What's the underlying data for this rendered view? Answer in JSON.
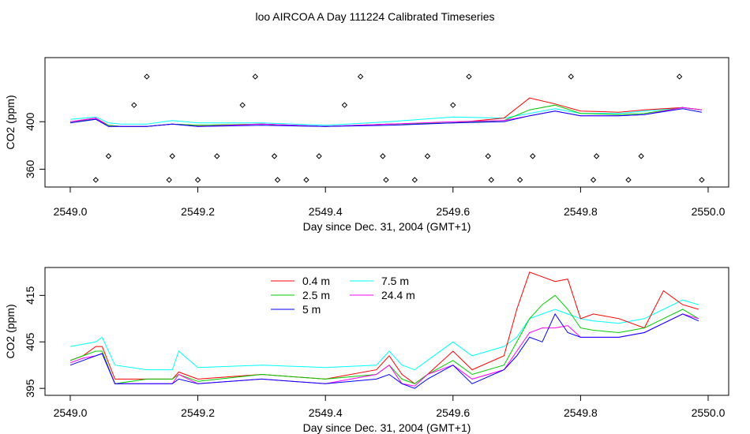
{
  "title": "loo AIRCOA A  Day 111224  Calibrated Timeseries",
  "colors": {
    "0.4 m": "#ff0000",
    "2.5 m": "#00cc00",
    "5 m": "#0000ff",
    "7.5 m": "#00ffff",
    "24.4 m": "#ff00ff",
    "marker": "#000000"
  },
  "chart_data": [
    {
      "type": "line",
      "xlabel": "Day since Dec. 31, 2004 (GMT+1)",
      "ylabel": "CO2 (ppm)",
      "xlim": [
        2549.0,
        2550.0
      ],
      "ylim": [
        345,
        454
      ],
      "xticks": [
        "2549.0",
        "2549.2",
        "2549.4",
        "2549.6",
        "2549.8",
        "2550.0"
      ],
      "yticks": [
        "360",
        "400"
      ],
      "x": [
        2549.0,
        2549.04,
        2549.06,
        2549.08,
        2549.12,
        2549.16,
        2549.2,
        2549.3,
        2549.4,
        2549.5,
        2549.6,
        2549.68,
        2549.72,
        2549.76,
        2549.8,
        2549.86,
        2549.9,
        2549.96,
        2549.99
      ],
      "series": [
        {
          "name": "0.4 m",
          "values": [
            400,
            403,
            397,
            396,
            396,
            398,
            397,
            398,
            396,
            398,
            399,
            403,
            420,
            415,
            409,
            408,
            410,
            412,
            410
          ]
        },
        {
          "name": "2.5 m",
          "values": [
            400,
            402,
            397,
            396,
            396,
            398,
            397,
            398,
            396,
            398,
            399,
            401,
            410,
            414,
            407,
            406,
            407,
            412,
            410
          ]
        },
        {
          "name": "5 m",
          "values": [
            399,
            402,
            396,
            396,
            396,
            398,
            396,
            397,
            396,
            397,
            399,
            400,
            405,
            409,
            405,
            405,
            406,
            411,
            408
          ]
        },
        {
          "name": "7.5 m",
          "values": [
            402,
            404,
            399,
            398,
            398,
            401,
            399,
            399,
            397,
            400,
            404,
            403,
            407,
            411,
            407,
            407,
            409,
            412,
            410
          ]
        },
        {
          "name": "24.4 m",
          "values": [
            400,
            403,
            396,
            396,
            396,
            398,
            396,
            398,
            396,
            398,
            400,
            401,
            405,
            409,
            405,
            405,
            406,
            412,
            410
          ]
        }
      ],
      "markers_x": [
        2549.04,
        2549.06,
        2549.1,
        2549.12,
        2549.155,
        2549.16,
        2549.2,
        2549.23,
        2549.27,
        2549.29,
        2549.32,
        2549.325,
        2549.37,
        2549.39,
        2549.43,
        2549.455,
        2549.49,
        2549.495,
        2549.54,
        2549.56,
        2549.6,
        2549.625,
        2549.655,
        2549.66,
        2549.705,
        2549.725,
        2549.785,
        2549.82,
        2549.825,
        2549.875,
        2549.895,
        2549.955,
        2549.99
      ],
      "markers_y": [
        351,
        371,
        414,
        438,
        351,
        371,
        351,
        371,
        414,
        438,
        371,
        351,
        351,
        371,
        414,
        438,
        371,
        351,
        351,
        371,
        414,
        438,
        371,
        351,
        351,
        371,
        438,
        351,
        371,
        351,
        371,
        438,
        351
      ]
    },
    {
      "type": "line",
      "xlabel": "Day since Dec. 31, 2004 (GMT+1)",
      "ylabel": "CO2 (ppm)",
      "xlim": [
        2549.0,
        2550.0
      ],
      "ylim": [
        393.5,
        421
      ],
      "xticks": [
        "2549.0",
        "2549.2",
        "2549.4",
        "2549.6",
        "2549.8",
        "2550.0"
      ],
      "yticks": [
        "395",
        "405",
        "415"
      ],
      "legend": "top-center",
      "x": [
        2549.0,
        2549.02,
        2549.04,
        2549.05,
        2549.07,
        2549.12,
        2549.16,
        2549.17,
        2549.2,
        2549.3,
        2549.4,
        2549.48,
        2549.5,
        2549.52,
        2549.54,
        2549.56,
        2549.6,
        2549.63,
        2549.68,
        2549.7,
        2549.72,
        2549.74,
        2549.76,
        2549.78,
        2549.8,
        2549.82,
        2549.86,
        2549.9,
        2549.93,
        2549.96,
        2549.985
      ],
      "series": [
        {
          "name": "0.4 m",
          "values": [
            401,
            402,
            404,
            404,
            397,
            397,
            397,
            398.5,
            397,
            398,
            397,
            399,
            402,
            398,
            396,
            398,
            403,
            399,
            402,
            412,
            420,
            419,
            418,
            418.5,
            410,
            411,
            410,
            408,
            416,
            413,
            412
          ]
        },
        {
          "name": "2.5 m",
          "values": [
            401,
            402,
            403,
            403,
            396,
            397,
            397,
            398,
            396.5,
            398,
            397,
            398,
            400,
            397,
            396,
            398,
            401,
            398,
            400,
            405,
            410,
            413,
            415,
            412,
            408,
            407.5,
            407,
            408,
            410,
            412,
            410
          ]
        },
        {
          "name": "5 m",
          "values": [
            400,
            401,
            402,
            402.5,
            396,
            396,
            396,
            397,
            396,
            397,
            396,
            397,
            398,
            396,
            395,
            397,
            400,
            396,
            399,
            402,
            406,
            405,
            411,
            407,
            406,
            406,
            406,
            407,
            409,
            411,
            409.5
          ]
        },
        {
          "name": "7.5 m",
          "values": [
            404,
            404.5,
            405,
            406,
            400,
            399,
            399,
            403,
            399.5,
            400,
            399.5,
            400,
            403,
            400,
            399,
            401,
            405,
            402,
            404,
            406,
            410,
            411,
            412,
            411,
            410,
            409.5,
            409,
            410,
            412,
            414,
            413
          ]
        },
        {
          "name": "24.4 m",
          "values": [
            400.5,
            401.5,
            402,
            402.5,
            396,
            396,
            396,
            398,
            396,
            397,
            396,
            398,
            400,
            396,
            395.5,
            398,
            400,
            397,
            399,
            403,
            407,
            408,
            408,
            408.5,
            406,
            406,
            406,
            407,
            409,
            411,
            410
          ]
        }
      ]
    }
  ]
}
